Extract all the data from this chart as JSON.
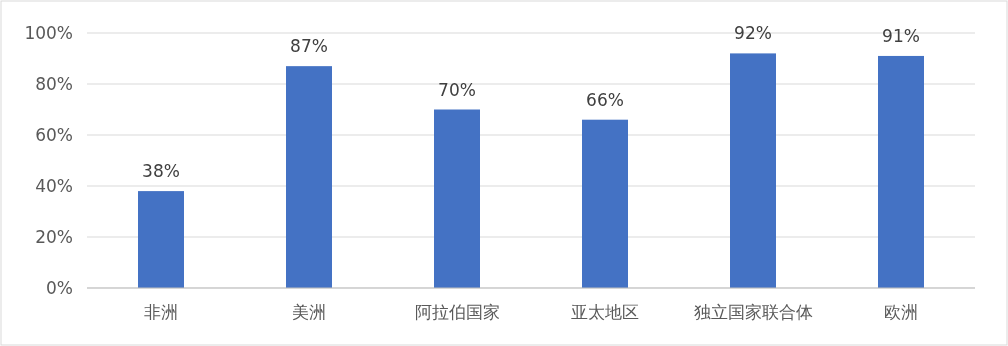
{
  "chart_data": {
    "type": "bar",
    "categories": [
      "非洲",
      "美洲",
      "阿拉伯国家",
      "亚太地区",
      "独立国家联合体",
      "欧洲"
    ],
    "values": [
      38,
      87,
      70,
      66,
      92,
      91
    ],
    "color": "#4472c4",
    "value_labels": [
      "38%",
      "87%",
      "70%",
      "66%",
      "92%",
      "91%"
    ],
    "ylim": [
      0,
      100
    ],
    "yticks": [
      {
        "value": 0,
        "label": "0%"
      },
      {
        "value": 20,
        "label": "20%"
      },
      {
        "value": 40,
        "label": "40%"
      },
      {
        "value": 60,
        "label": "60%"
      },
      {
        "value": 80,
        "label": "80%"
      },
      {
        "value": 100,
        "label": "100%"
      }
    ],
    "grid": "y"
  }
}
